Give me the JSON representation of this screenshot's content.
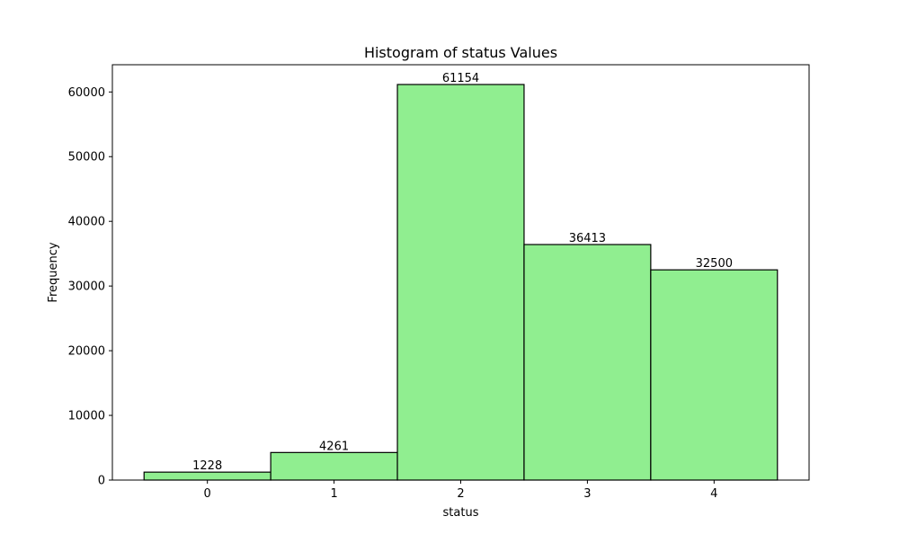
{
  "chart_data": {
    "type": "bar",
    "title": "Histogram of status Values",
    "xlabel": "status",
    "ylabel": "Frequency",
    "categories": [
      "0",
      "1",
      "2",
      "3",
      "4"
    ],
    "values": [
      1228,
      4261,
      61154,
      36413,
      32500
    ],
    "data_labels": [
      "1228",
      "4261",
      "61154",
      "36413",
      "32500"
    ],
    "x_bin_range": [
      -0.5,
      4.5
    ],
    "xlim": [
      -0.75,
      4.75
    ],
    "ylim": [
      0,
      64211
    ],
    "yticks": [
      0,
      10000,
      20000,
      30000,
      40000,
      50000,
      60000
    ],
    "ytick_labels": [
      "0",
      "10000",
      "20000",
      "30000",
      "40000",
      "50000",
      "60000"
    ],
    "xticks": [
      0,
      1,
      2,
      3,
      4
    ],
    "xtick_labels": [
      "0",
      "1",
      "2",
      "3",
      "4"
    ],
    "grid": false,
    "legend": "none",
    "colors": {
      "bar_fill": "#90ee90",
      "bar_edge": "#000000",
      "axis": "#000000",
      "background": "#ffffff"
    }
  }
}
